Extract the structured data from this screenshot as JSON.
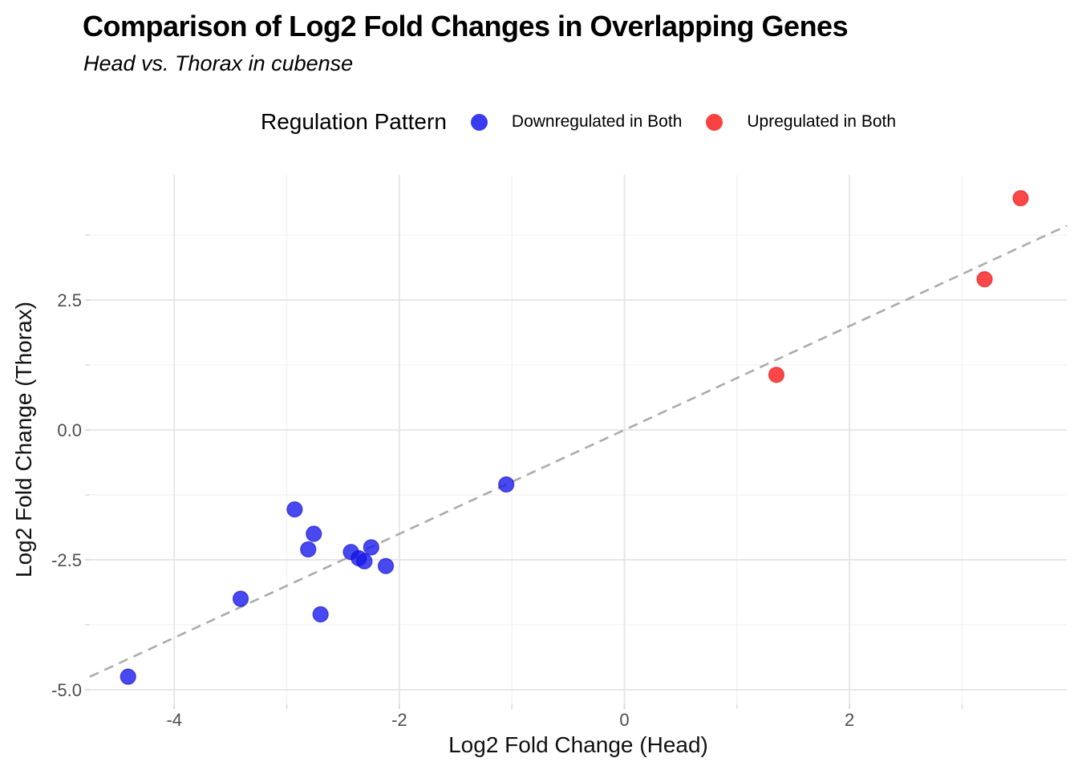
{
  "chart_data": {
    "type": "scatter",
    "title": "Comparison of Log2 Fold Changes in Overlapping Genes",
    "subtitle": "Head vs. Thorax in cubense",
    "xlabel": "Log2 Fold Change (Head)",
    "ylabel": "Log2 Fold Change (Thorax)",
    "xlim": [
      -4.75,
      3.93
    ],
    "ylim": [
      -5.28,
      4.91
    ],
    "grid": "on",
    "x_ticks": [
      {
        "v": -4,
        "label": "-4"
      },
      {
        "v": -2,
        "label": "-2"
      },
      {
        "v": 0,
        "label": "0"
      },
      {
        "v": 2,
        "label": "2"
      }
    ],
    "y_ticks": [
      {
        "v": 2.5,
        "label": "2.5"
      },
      {
        "v": 0,
        "label": "0.0"
      },
      {
        "v": -2.5,
        "label": "-2.5"
      },
      {
        "v": -5,
        "label": "-5.0"
      }
    ],
    "x_minor": [
      -3,
      -1,
      1,
      3
    ],
    "y_minor": [
      3.75,
      1.25,
      -1.25,
      -3.75
    ],
    "legend": {
      "title": "Regulation Pattern",
      "position": "top",
      "items": [
        {
          "label": "Downregulated in Both",
          "color": "#3A3AEF"
        },
        {
          "label": "Upregulated in Both",
          "color": "#F94141"
        }
      ]
    },
    "identity_line": {
      "slope": 1,
      "intercept": 0,
      "style": "dashed",
      "color": "#ABABAB"
    },
    "series": [
      {
        "name": "Downregulated in Both",
        "fill": "rgba(22,22,238,0.78)",
        "stroke": "rgba(10,10,190,0.6)",
        "points": [
          [
            -4.41,
            -4.75
          ],
          [
            -3.41,
            -3.25
          ],
          [
            -2.93,
            -1.53
          ],
          [
            -2.81,
            -2.3
          ],
          [
            -2.76,
            -2.0
          ],
          [
            -2.7,
            -3.55
          ],
          [
            -2.43,
            -2.35
          ],
          [
            -2.36,
            -2.47
          ],
          [
            -2.31,
            -2.53
          ],
          [
            -2.25,
            -2.26
          ],
          [
            -2.12,
            -2.62
          ],
          [
            -1.05,
            -1.05
          ]
        ]
      },
      {
        "name": "Upregulated in Both",
        "fill": "rgba(250,25,25,0.80)",
        "stroke": "rgba(210,20,20,0.6)",
        "points": [
          [
            1.35,
            1.06
          ],
          [
            3.2,
            2.9
          ],
          [
            3.52,
            4.46
          ]
        ]
      }
    ],
    "style": {
      "major_grid": "#E4E4E4",
      "minor_grid": "#F1F1F1",
      "tick": "#D8D8D8",
      "tick_label_color": "#4D4D4D",
      "tick_label_size": 22,
      "point_radius": 9.5
    }
  }
}
